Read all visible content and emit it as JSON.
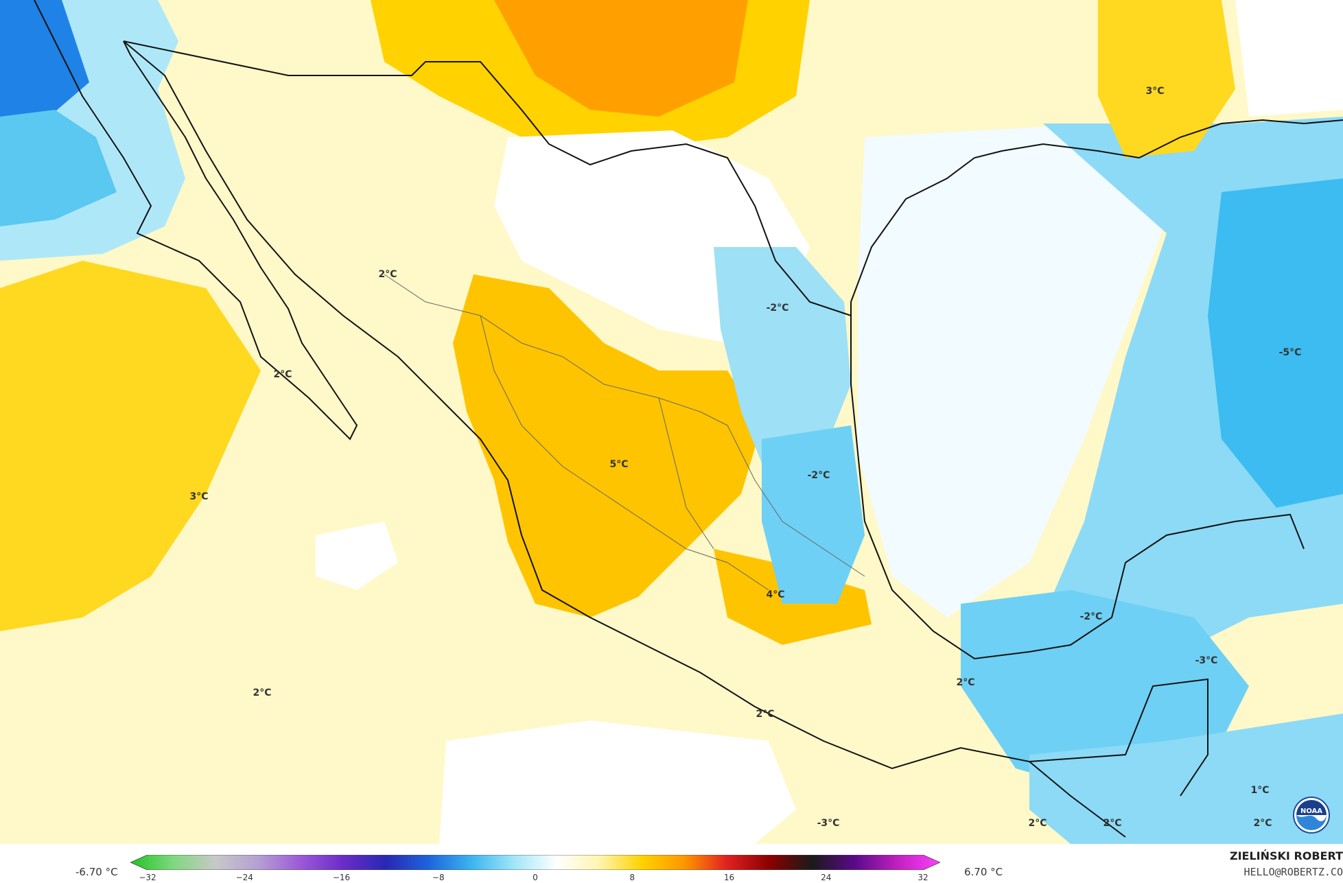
{
  "map": {
    "unit": "°C",
    "labels": [
      {
        "text": "3°C"
      },
      {
        "text": "2°C"
      },
      {
        "text": "2°C"
      },
      {
        "text": "-2°C"
      },
      {
        "text": "-5°C"
      },
      {
        "text": "5°C"
      },
      {
        "text": "-2°C"
      },
      {
        "text": "3°C"
      },
      {
        "text": "2°C"
      },
      {
        "text": "4°C"
      },
      {
        "text": "-2°C"
      },
      {
        "text": "-3°C"
      },
      {
        "text": "2°C"
      },
      {
        "text": "2°C"
      },
      {
        "text": "1°C"
      },
      {
        "text": "-3°C"
      },
      {
        "text": "2°C"
      },
      {
        "text": "2°C"
      },
      {
        "text": "2°C"
      }
    ]
  },
  "legend": {
    "min_value": "-6.70 °C",
    "max_value": "6.70 °C",
    "ticks": [
      "−32",
      "−24",
      "−16",
      "−8",
      "0",
      "8",
      "16",
      "24",
      "32"
    ],
    "colors": [
      "#22c322",
      "#7fd87f",
      "#c8c8c8",
      "#b4a0d2",
      "#9b59d8",
      "#6a2cc8",
      "#2828b4",
      "#1e64dc",
      "#3cb4f0",
      "#a0e6f8",
      "#ffffff",
      "#fff5b0",
      "#ffd200",
      "#ff9600",
      "#e02020",
      "#8b0000",
      "#1a1a1a",
      "#5a0a8a",
      "#c020c0",
      "#ff40ff"
    ]
  },
  "credits": {
    "author": "ZIELIŃSKI ROBERT",
    "email": "HELLO@ROBERTZ.CO",
    "logo_text": "NOAA",
    "logo_icon": "noaa-logo-icon"
  }
}
